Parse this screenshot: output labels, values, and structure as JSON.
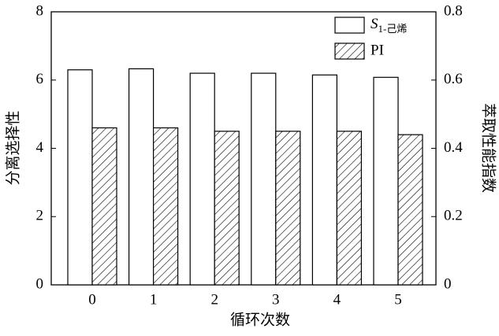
{
  "chart_data": {
    "type": "bar",
    "x_label": "循环次数",
    "y_label": "分离选择性",
    "y2_label": "萃取性能指数",
    "categories": [
      "0",
      "1",
      "2",
      "3",
      "4",
      "5"
    ],
    "series": [
      {
        "name": "S1-己烯",
        "color": "#ffffff",
        "values": [
          6.3,
          6.33,
          6.2,
          6.2,
          6.15,
          6.08
        ]
      },
      {
        "name": "PI",
        "color": "hatch",
        "axis": "y2",
        "values": [
          0.46,
          0.46,
          0.45,
          0.45,
          0.45,
          0.44
        ]
      }
    ],
    "ylim": [
      0,
      8
    ],
    "yticks": [
      0,
      2,
      4,
      6,
      8
    ],
    "y2lim": [
      0,
      0.8
    ],
    "y2ticks": [
      0,
      0.2,
      0.4,
      0.6,
      0.8
    ],
    "legend": "upper right"
  }
}
